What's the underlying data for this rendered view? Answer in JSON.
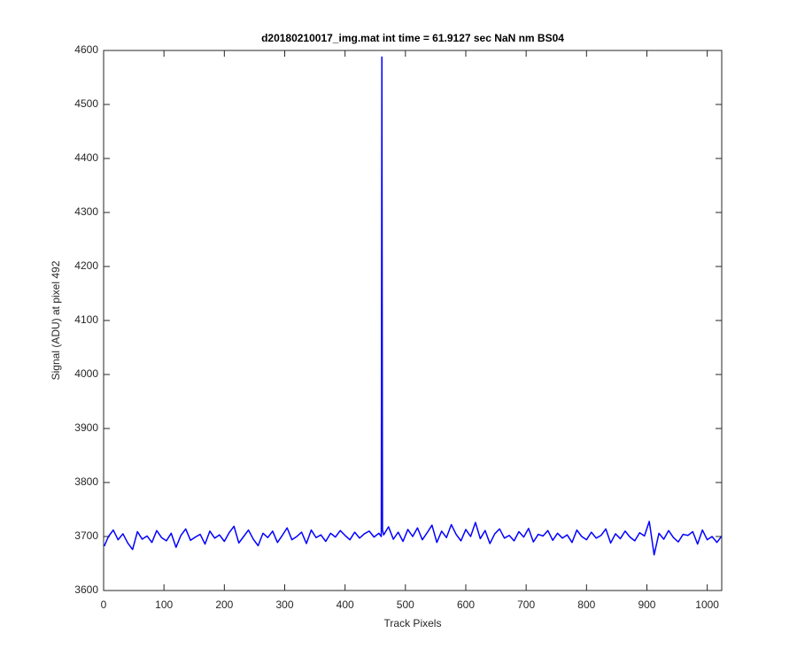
{
  "chart_data": {
    "type": "line",
    "title": "d20180210017_img.mat int time = 61.9127 sec  NaN nm BS04",
    "x_label": "Track Pixels",
    "y_label": "Signal (ADU) at pixel 492",
    "xlim": [
      0,
      1024
    ],
    "ylim": [
      3600,
      4600
    ],
    "xticks": [
      0,
      100,
      200,
      300,
      400,
      500,
      600,
      700,
      800,
      900,
      1000
    ],
    "yticks": [
      3600,
      3700,
      3800,
      3900,
      4000,
      4100,
      4200,
      4300,
      4400,
      4500,
      4600
    ],
    "grid": false,
    "x": [
      1,
      8,
      16,
      24,
      32,
      40,
      48,
      56,
      64,
      72,
      80,
      88,
      96,
      104,
      112,
      120,
      128,
      136,
      144,
      152,
      160,
      168,
      176,
      184,
      192,
      200,
      208,
      216,
      224,
      232,
      240,
      248,
      256,
      264,
      272,
      280,
      288,
      296,
      304,
      312,
      320,
      328,
      336,
      344,
      352,
      360,
      368,
      376,
      384,
      392,
      400,
      408,
      416,
      424,
      432,
      440,
      448,
      456,
      460,
      461,
      462,
      464,
      472,
      480,
      488,
      496,
      504,
      512,
      520,
      528,
      536,
      544,
      552,
      560,
      568,
      576,
      584,
      592,
      600,
      608,
      616,
      624,
      632,
      640,
      648,
      656,
      664,
      672,
      680,
      688,
      696,
      704,
      712,
      720,
      728,
      736,
      744,
      752,
      760,
      768,
      776,
      784,
      792,
      800,
      808,
      816,
      824,
      832,
      840,
      848,
      856,
      864,
      872,
      880,
      888,
      896,
      904,
      912,
      920,
      928,
      936,
      944,
      952,
      960,
      968,
      976,
      984,
      992,
      1000,
      1008,
      1016,
      1024
    ],
    "series": [
      {
        "color": "#0000ff",
        "values": [
          3682,
          3700,
          3712,
          3694,
          3705,
          3688,
          3676,
          3709,
          3695,
          3701,
          3689,
          3711,
          3698,
          3692,
          3706,
          3680,
          3702,
          3714,
          3693,
          3699,
          3704,
          3686,
          3710,
          3697,
          3703,
          3691,
          3707,
          3719,
          3688,
          3700,
          3712,
          3695,
          3683,
          3706,
          3698,
          3710,
          3689,
          3702,
          3716,
          3694,
          3700,
          3708,
          3687,
          3712,
          3698,
          3703,
          3691,
          3706,
          3699,
          3711,
          3702,
          3694,
          3708,
          3697,
          3705,
          3710,
          3699,
          3706,
          3700,
          4588,
          3712,
          3703,
          3718,
          3695,
          3708,
          3691,
          3713,
          3700,
          3716,
          3694,
          3707,
          3721,
          3689,
          3710,
          3698,
          3722,
          3704,
          3692,
          3713,
          3700,
          3726,
          3696,
          3711,
          3687,
          3705,
          3714,
          3697,
          3702,
          3692,
          3709,
          3699,
          3715,
          3690,
          3704,
          3701,
          3711,
          3693,
          3706,
          3697,
          3703,
          3689,
          3712,
          3700,
          3694,
          3708,
          3697,
          3702,
          3714,
          3688,
          3705,
          3696,
          3710,
          3699,
          3692,
          3707,
          3701,
          3728,
          3666,
          3706,
          3695,
          3711,
          3698,
          3690,
          3704,
          3702,
          3709,
          3686,
          3712,
          3694,
          3700,
          3689,
          3701
        ]
      }
    ]
  }
}
